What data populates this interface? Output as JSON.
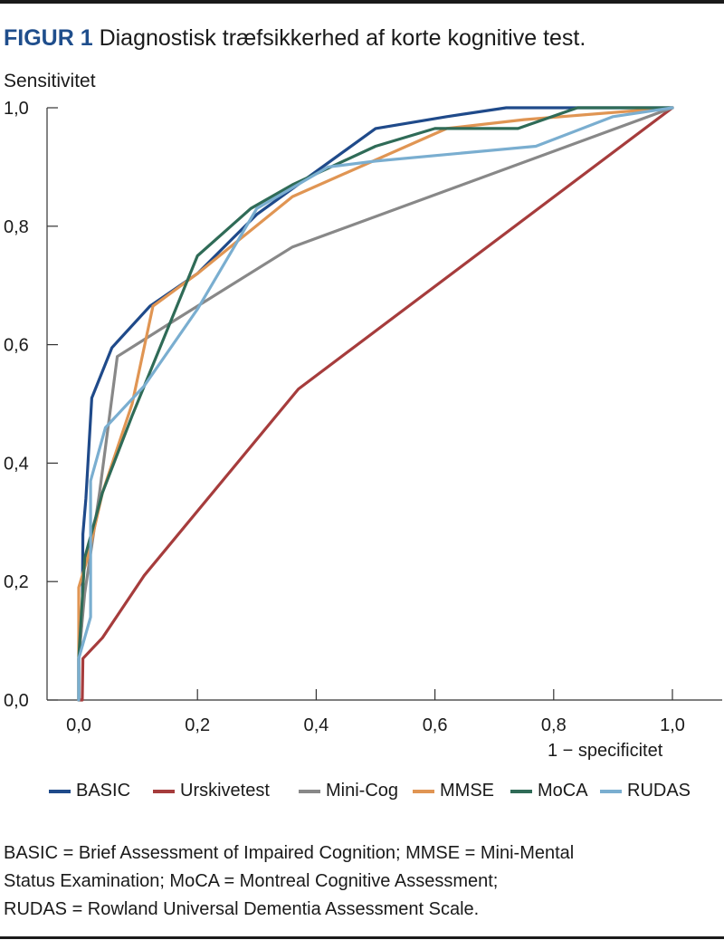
{
  "header": {
    "figure_label": "FIGUR 1",
    "figure_title": "Diagnostisk træfsikkerhed af korte kognitive test."
  },
  "footnote": {
    "lines": [
      "BASIC = Brief Assessment of Impaired Cognition; MMSE = Mini-Mental",
      "Status Examination; MoCA = Montreal Cognitive Assessment;",
      "RUDAS = Rowland Universal Dementia Assessment Scale."
    ]
  },
  "chart_data": {
    "type": "line",
    "title": "",
    "xlabel": "1 − specificitet",
    "ylabel": "Sensitivitet",
    "xlim": [
      0,
      1.0
    ],
    "ylim": [
      0,
      1.0
    ],
    "x_ticks": [
      "0,0",
      "0,2",
      "0,4",
      "0,6",
      "0,8",
      "1,0"
    ],
    "y_ticks": [
      "0,0",
      "0,2",
      "0,4",
      "0,6",
      "0,8",
      "1,0"
    ],
    "grid": false,
    "legend_position": "bottom",
    "series": [
      {
        "name": "BASIC",
        "color": "#1f4a8a",
        "points": [
          [
            0,
            0
          ],
          [
            0,
            0.07
          ],
          [
            0.006,
            0.14
          ],
          [
            0.007,
            0.28
          ],
          [
            0.012,
            0.34
          ],
          [
            0.022,
            0.51
          ],
          [
            0.056,
            0.595
          ],
          [
            0.12,
            0.665
          ],
          [
            0.2,
            0.72
          ],
          [
            0.3,
            0.82
          ],
          [
            0.5,
            0.965
          ],
          [
            0.62,
            0.985
          ],
          [
            0.72,
            1.0
          ],
          [
            1.0,
            1.0
          ]
        ]
      },
      {
        "name": "Urskivetest",
        "color": "#a63c3c",
        "points": [
          [
            0,
            0
          ],
          [
            0.006,
            0.0
          ],
          [
            0.007,
            0.07
          ],
          [
            0.04,
            0.105
          ],
          [
            0.11,
            0.21
          ],
          [
            0.37,
            0.525
          ],
          [
            1.0,
            1.0
          ]
        ]
      },
      {
        "name": "Mini-Cog",
        "color": "#888888",
        "points": [
          [
            0,
            0
          ],
          [
            0,
            0.07
          ],
          [
            0.01,
            0.18
          ],
          [
            0.035,
            0.35
          ],
          [
            0.065,
            0.58
          ],
          [
            0.16,
            0.64
          ],
          [
            0.36,
            0.765
          ],
          [
            1.0,
            1.0
          ]
        ]
      },
      {
        "name": "MMSE",
        "color": "#e09553",
        "points": [
          [
            0,
            0
          ],
          [
            0,
            0.19
          ],
          [
            0.015,
            0.24
          ],
          [
            0.04,
            0.35
          ],
          [
            0.09,
            0.5
          ],
          [
            0.125,
            0.665
          ],
          [
            0.2,
            0.72
          ],
          [
            0.36,
            0.85
          ],
          [
            0.62,
            0.965
          ],
          [
            0.75,
            0.98
          ],
          [
            1.0,
            1.0
          ]
        ]
      },
      {
        "name": "MoCA",
        "color": "#2f6b57",
        "points": [
          [
            0,
            0
          ],
          [
            0,
            0.07
          ],
          [
            0.01,
            0.24
          ],
          [
            0.04,
            0.35
          ],
          [
            0.09,
            0.48
          ],
          [
            0.2,
            0.75
          ],
          [
            0.29,
            0.83
          ],
          [
            0.36,
            0.87
          ],
          [
            0.5,
            0.935
          ],
          [
            0.6,
            0.965
          ],
          [
            0.74,
            0.965
          ],
          [
            0.84,
            1.0
          ],
          [
            1.0,
            1.0
          ]
        ]
      },
      {
        "name": "RUDAS",
        "color": "#7aaed0",
        "points": [
          [
            0,
            0
          ],
          [
            0,
            0.07
          ],
          [
            0.02,
            0.14
          ],
          [
            0.02,
            0.37
          ],
          [
            0.045,
            0.46
          ],
          [
            0.11,
            0.53
          ],
          [
            0.2,
            0.66
          ],
          [
            0.3,
            0.83
          ],
          [
            0.42,
            0.9
          ],
          [
            0.5,
            0.91
          ],
          [
            0.77,
            0.935
          ],
          [
            0.9,
            0.985
          ],
          [
            1.0,
            1.0
          ]
        ]
      }
    ]
  }
}
